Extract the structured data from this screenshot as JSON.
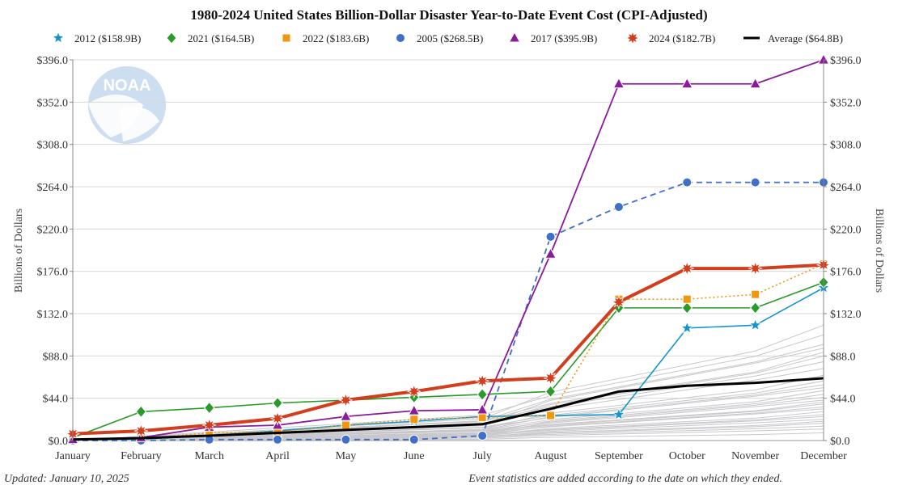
{
  "chart_data": {
    "type": "line",
    "title": "1980-2024 United States Billion-Dollar Disaster Year-to-Date Event Cost (CPI-Adjusted)",
    "ylabel": "Billions of Dollars",
    "ylabel_right": "Billions of Dollars",
    "categories": [
      "January",
      "February",
      "March",
      "April",
      "May",
      "June",
      "July",
      "August",
      "September",
      "October",
      "November",
      "December"
    ],
    "ylim": [
      0,
      396
    ],
    "yticks": [
      "$0.0",
      "$44.0",
      "$88.0",
      "$132.0",
      "$176.0",
      "$220.0",
      "$264.0",
      "$308.0",
      "$352.0",
      "$396.0"
    ],
    "ytick_values": [
      0,
      44,
      88,
      132,
      176,
      220,
      264,
      308,
      352,
      396
    ],
    "legend_position": "top",
    "grid": true,
    "series": [
      {
        "name": "2012 ($158.9B)",
        "color": "#1596c8",
        "marker": "star",
        "dash": "solid",
        "width": 1.6,
        "values": [
          1,
          1.5,
          5,
          10,
          16,
          20,
          25,
          26,
          27,
          117,
          120,
          158.9
        ]
      },
      {
        "name": "2021 ($164.5B)",
        "color": "#2a9a2a",
        "marker": "diamond",
        "dash": "solid",
        "width": 1.6,
        "values": [
          3,
          30,
          34,
          39,
          42,
          45,
          48,
          51,
          138,
          138,
          138,
          164.5
        ]
      },
      {
        "name": "2022 ($183.6B)",
        "color": "#f0960f",
        "marker": "square",
        "dash": "dotted",
        "width": 1.6,
        "values": [
          1,
          2,
          8,
          9,
          16,
          22,
          24,
          26,
          147,
          147,
          152,
          183.6
        ]
      },
      {
        "name": "2005 ($268.5B)",
        "color": "#3f6fc6",
        "marker": "circle",
        "dash": "dashed",
        "width": 1.8,
        "values": [
          0,
          0,
          1,
          1,
          1,
          1,
          5,
          212,
          243,
          268.5,
          268.5,
          268.5
        ]
      },
      {
        "name": "2017 ($395.9B)",
        "color": "#8b1b9b",
        "marker": "triangle",
        "dash": "solid",
        "width": 1.8,
        "values": [
          1,
          3,
          14,
          16,
          25,
          31,
          32,
          194,
          371,
          371,
          371,
          395.9
        ]
      },
      {
        "name": "2024 ($182.7B)",
        "color": "#d23e1c",
        "marker": "burst",
        "dash": "solid",
        "width": 4,
        "values": [
          7,
          10,
          16,
          23,
          42,
          51,
          62,
          65,
          144,
          179,
          179,
          182.7
        ]
      },
      {
        "name": "Average ($64.8B)",
        "color": "#000000",
        "marker": "none",
        "dash": "solid",
        "width": 3,
        "values": [
          1,
          2.5,
          5,
          8,
          11,
          14,
          17,
          33,
          51,
          57,
          60,
          64.8
        ]
      }
    ]
  },
  "footer": {
    "updated": "Updated: January 10, 2025",
    "note": "Event statistics are added according to the date on which they ended."
  },
  "logo": {
    "text": "NOAA"
  }
}
